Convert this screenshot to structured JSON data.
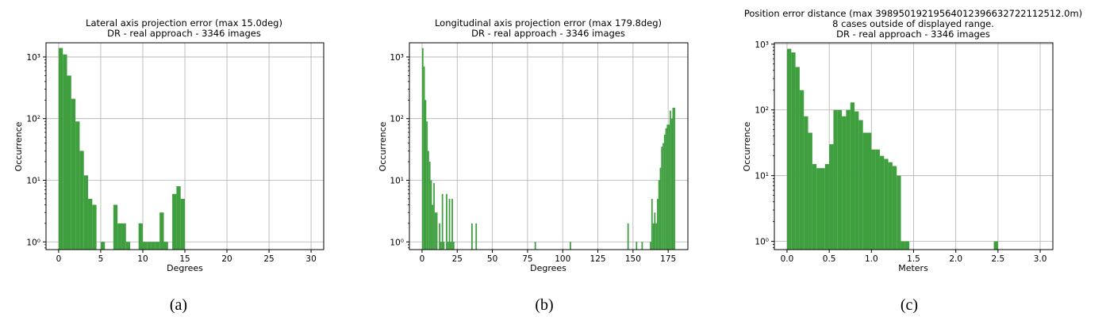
{
  "charts": {
    "lateral": {
      "title_line1": "Lateral axis projection error (max 15.0deg)",
      "title_line2": "DR - real approach - 3346 images",
      "xlabel": "Degrees",
      "ylabel": "Occurrence",
      "caption": "(a)"
    },
    "longitudinal": {
      "title_line1": "Longitudinal axis projection error (max 179.8deg)",
      "title_line2": "DR - real approach - 3346 images",
      "xlabel": "Degrees",
      "ylabel": "Occurrence",
      "caption": "(b)"
    },
    "position": {
      "title_line1": "Position error distance (max 3989501921956401239663272211251 2.0m)",
      "title_line1_exact": "Position error distance (max 39895019219564012396632722112512.0m)",
      "title_line2": "8 cases outside of displayed range.",
      "title_line3": "DR - real approach - 3346 images",
      "xlabel": "Meters",
      "ylabel": "Occurrence",
      "caption": "(c)"
    }
  },
  "bar_color": "#3f9f3f",
  "chart_data": [
    {
      "type": "bar",
      "title": "Lateral axis projection error (max 15.0deg)",
      "subtitle": "DR - real approach - 3346 images",
      "xlabel": "Degrees",
      "ylabel": "Occurrence",
      "xlim": [
        -1.5,
        31.5
      ],
      "ylim": [
        0.75,
        1700
      ],
      "yscale": "log",
      "x_ticks": [
        0,
        5,
        10,
        15,
        20,
        25,
        30
      ],
      "y_ticks": [
        1,
        10,
        100,
        1000
      ],
      "y_tick_labels": [
        "10⁰",
        "10¹",
        "10²",
        "10³"
      ],
      "grid": true,
      "bin_width": 0.5,
      "bins": [
        [
          0,
          1400
        ],
        [
          0.5,
          1100
        ],
        [
          1,
          500
        ],
        [
          1.5,
          210
        ],
        [
          2,
          90
        ],
        [
          2.5,
          30
        ],
        [
          3,
          12
        ],
        [
          3.5,
          5
        ],
        [
          4,
          4
        ],
        [
          5,
          1
        ],
        [
          6.5,
          4
        ],
        [
          7,
          2
        ],
        [
          7.5,
          2
        ],
        [
          8,
          1
        ],
        [
          9.5,
          2
        ],
        [
          10,
          1
        ],
        [
          10.5,
          1
        ],
        [
          11,
          1
        ],
        [
          11.5,
          1
        ],
        [
          12,
          3
        ],
        [
          12.5,
          1
        ],
        [
          13.5,
          6
        ],
        [
          14,
          8
        ],
        [
          14.5,
          5
        ]
      ]
    },
    {
      "type": "bar",
      "title": "Longitudinal axis projection error (max 179.8deg)",
      "subtitle": "DR - real approach - 3346 images",
      "xlabel": "Degrees",
      "ylabel": "Occurrence",
      "xlim": [
        -9,
        189
      ],
      "ylim": [
        0.75,
        1700
      ],
      "yscale": "log",
      "x_ticks": [
        0,
        25,
        50,
        75,
        100,
        125,
        150,
        175
      ],
      "y_ticks": [
        1,
        10,
        100,
        1000
      ],
      "y_tick_labels": [
        "10⁰",
        "10¹",
        "10²",
        "10³"
      ],
      "grid": true,
      "bin_width": 1,
      "bins": [
        [
          0,
          1400
        ],
        [
          1,
          700
        ],
        [
          2,
          200
        ],
        [
          3,
          90
        ],
        [
          4,
          30
        ],
        [
          5,
          20
        ],
        [
          6,
          10
        ],
        [
          7,
          4
        ],
        [
          8,
          9
        ],
        [
          9,
          3
        ],
        [
          10,
          3
        ],
        [
          12,
          2
        ],
        [
          13,
          1
        ],
        [
          14,
          6
        ],
        [
          15,
          1
        ],
        [
          17,
          6
        ],
        [
          18,
          1
        ],
        [
          19,
          5
        ],
        [
          20,
          1
        ],
        [
          21,
          5
        ],
        [
          22,
          1
        ],
        [
          35,
          2
        ],
        [
          38,
          2
        ],
        [
          80,
          1
        ],
        [
          105,
          1
        ],
        [
          146,
          2
        ],
        [
          152,
          1
        ],
        [
          156,
          1
        ],
        [
          162,
          1
        ],
        [
          163,
          5
        ],
        [
          164,
          2
        ],
        [
          165,
          3
        ],
        [
          166,
          2
        ],
        [
          167,
          5
        ],
        [
          168,
          10
        ],
        [
          169,
          16
        ],
        [
          170,
          35
        ],
        [
          171,
          40
        ],
        [
          172,
          55
        ],
        [
          173,
          70
        ],
        [
          174,
          80
        ],
        [
          175,
          80
        ],
        [
          176,
          135
        ],
        [
          177,
          100
        ],
        [
          178,
          150
        ],
        [
          179,
          150
        ]
      ]
    },
    {
      "type": "bar",
      "title": "Position error distance (max 39895019219564012396632722112512.0m)",
      "subtitle": "8 cases outside of displayed range. DR - real approach - 3346 images",
      "xlabel": "Meters",
      "ylabel": "Occurrence",
      "xlim": [
        -0.15,
        3.15
      ],
      "ylim": [
        0.75,
        1050
      ],
      "yscale": "log",
      "x_ticks": [
        0.0,
        0.5,
        1.0,
        1.5,
        2.0,
        2.5,
        3.0
      ],
      "x_tick_labels": [
        "0.0",
        "0.5",
        "1.0",
        "1.5",
        "2.0",
        "2.5",
        "3.0"
      ],
      "y_ticks": [
        1,
        10,
        100,
        1000
      ],
      "y_tick_labels": [
        "10⁰",
        "10¹",
        "10²",
        "10³"
      ],
      "grid": true,
      "bin_width": 0.05,
      "bins": [
        [
          0.0,
          850
        ],
        [
          0.05,
          750
        ],
        [
          0.1,
          450
        ],
        [
          0.15,
          200
        ],
        [
          0.2,
          80
        ],
        [
          0.25,
          45
        ],
        [
          0.3,
          15
        ],
        [
          0.35,
          13
        ],
        [
          0.4,
          13
        ],
        [
          0.45,
          15
        ],
        [
          0.5,
          30
        ],
        [
          0.55,
          100
        ],
        [
          0.6,
          100
        ],
        [
          0.65,
          80
        ],
        [
          0.7,
          100
        ],
        [
          0.75,
          130
        ],
        [
          0.8,
          95
        ],
        [
          0.85,
          70
        ],
        [
          0.9,
          45
        ],
        [
          0.95,
          45
        ],
        [
          1.0,
          25
        ],
        [
          1.05,
          25
        ],
        [
          1.1,
          20
        ],
        [
          1.15,
          18
        ],
        [
          1.2,
          16
        ],
        [
          1.25,
          14
        ],
        [
          1.3,
          10
        ],
        [
          1.35,
          1
        ],
        [
          1.4,
          1
        ],
        [
          2.45,
          1
        ]
      ]
    }
  ]
}
